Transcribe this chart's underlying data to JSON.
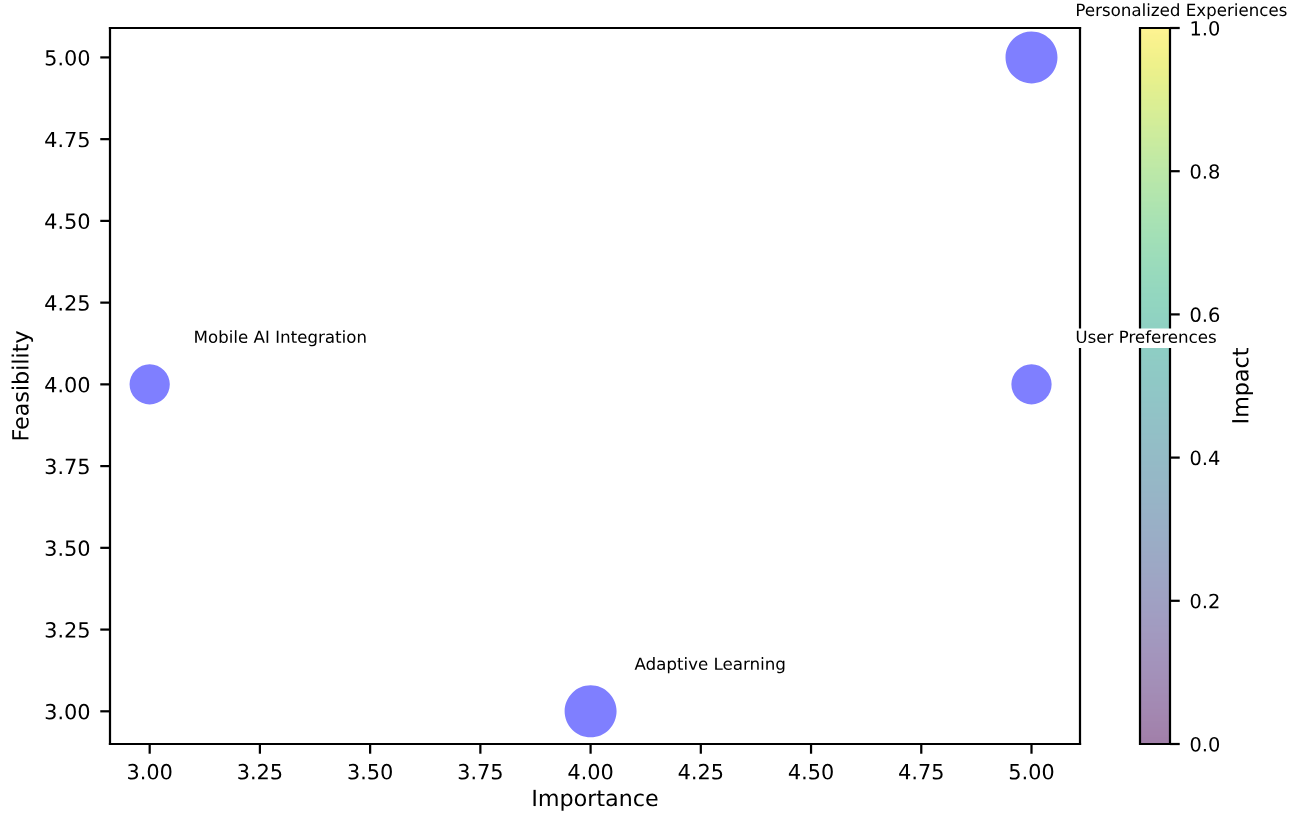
{
  "chart_data": {
    "type": "bubble",
    "xlabel": "Importance",
    "ylabel": "Feasibility",
    "clabel": "Impact",
    "x": [
      5,
      5,
      3,
      4
    ],
    "series": [
      {
        "color": "#7f7fff",
        "values": [
          5,
          4,
          4,
          3
        ],
        "sizes": [
          1,
          0.6,
          0.6,
          1
        ]
      }
    ],
    "annotations": [
      "Personalized Experiences",
      "User Preferences",
      "Mobile AI Integration",
      "Adaptive Learning"
    ],
    "xlim": [
      2.91,
      5.11
    ],
    "ylim": [
      2.9,
      5.09
    ],
    "xticks": [
      {
        "value": 3,
        "label": "3.00"
      },
      {
        "value": 3.25,
        "label": "3.25"
      },
      {
        "value": 3.5,
        "label": "3.50"
      },
      {
        "value": 3.75,
        "label": "3.75"
      },
      {
        "value": 4,
        "label": "4.00"
      },
      {
        "value": 4.25,
        "label": "4.25"
      },
      {
        "value": 4.5,
        "label": "4.50"
      },
      {
        "value": 4.75,
        "label": "4.75"
      },
      {
        "value": 5,
        "label": "5.00"
      }
    ],
    "yticks": [
      {
        "value": 3,
        "label": "3.00"
      },
      {
        "value": 3.25,
        "label": "3.25"
      },
      {
        "value": 3.5,
        "label": "3.50"
      },
      {
        "value": 3.75,
        "label": "3.75"
      },
      {
        "value": 4,
        "label": "4.00"
      },
      {
        "value": 4.25,
        "label": "4.25"
      },
      {
        "value": 4.5,
        "label": "4.50"
      },
      {
        "value": 4.75,
        "label": "4.75"
      },
      {
        "value": 5,
        "label": "5.00"
      }
    ],
    "clim": [
      0,
      1
    ],
    "cticks": [
      {
        "value": 0,
        "label": "0.0"
      },
      {
        "value": 0.2,
        "label": "0.2"
      },
      {
        "value": 0.4,
        "label": "0.4"
      },
      {
        "value": 0.6,
        "label": "0.6"
      },
      {
        "value": 0.8,
        "label": "0.8"
      },
      {
        "value": 1,
        "label": "1.0"
      }
    ],
    "grid": false
  }
}
